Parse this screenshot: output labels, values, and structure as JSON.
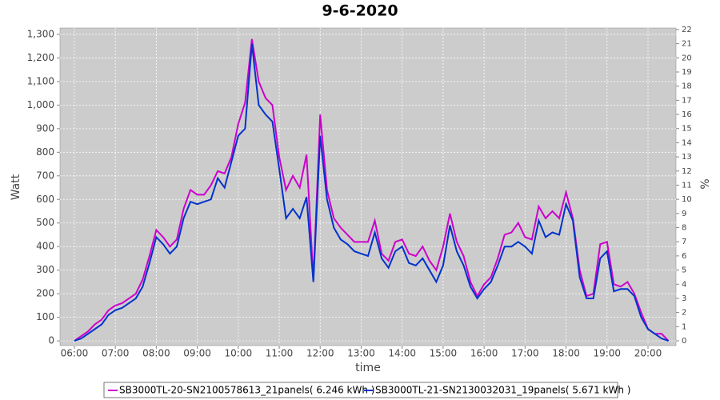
{
  "chart_data": {
    "type": "line",
    "title": "9-6-2020",
    "x_label": "time",
    "y_label": "Watt",
    "y2_label": "%",
    "x": [
      360,
      370,
      380,
      390,
      400,
      410,
      420,
      430,
      440,
      450,
      460,
      470,
      480,
      490,
      500,
      510,
      520,
      530,
      540,
      550,
      560,
      570,
      580,
      590,
      600,
      610,
      620,
      630,
      640,
      650,
      660,
      670,
      680,
      690,
      700,
      710,
      720,
      730,
      740,
      750,
      760,
      770,
      780,
      790,
      800,
      810,
      820,
      830,
      840,
      850,
      860,
      870,
      880,
      890,
      900,
      910,
      920,
      930,
      940,
      950,
      960,
      970,
      980,
      990,
      1000,
      1010,
      1020,
      1030,
      1040,
      1050,
      1060,
      1070,
      1080,
      1090,
      1100,
      1110,
      1120,
      1130,
      1140,
      1150,
      1160,
      1170,
      1180,
      1190,
      1200,
      1210,
      1220,
      1230
    ],
    "series": [
      {
        "name": "SB3000TL-20-SN2100578613_21panels( 6.246 kWh )",
        "color": "#cc00cc",
        "values": [
          0,
          20,
          40,
          70,
          90,
          130,
          150,
          160,
          180,
          200,
          260,
          360,
          470,
          440,
          400,
          430,
          560,
          640,
          620,
          620,
          660,
          720,
          710,
          780,
          920,
          1010,
          1280,
          1100,
          1030,
          1000,
          780,
          640,
          700,
          650,
          790,
          260,
          960,
          640,
          520,
          480,
          450,
          420,
          420,
          420,
          510,
          370,
          340,
          420,
          430,
          370,
          360,
          400,
          340,
          300,
          400,
          540,
          420,
          360,
          250,
          190,
          240,
          270,
          350,
          450,
          460,
          500,
          440,
          430,
          570,
          520,
          550,
          520,
          630,
          520,
          300,
          190,
          200,
          410,
          420,
          240,
          230,
          250,
          200,
          120,
          50,
          30,
          30,
          0
        ]
      },
      {
        "name": "SB3000TL-21-SN2130032031_19panels( 5.671 kWh )",
        "color": "#0033cc",
        "values": [
          0,
          10,
          30,
          50,
          70,
          110,
          130,
          140,
          160,
          180,
          230,
          330,
          440,
          410,
          370,
          400,
          520,
          590,
          580,
          590,
          600,
          690,
          650,
          760,
          870,
          900,
          1260,
          1000,
          960,
          930,
          730,
          520,
          560,
          520,
          610,
          250,
          870,
          600,
          480,
          430,
          410,
          380,
          370,
          360,
          460,
          350,
          310,
          380,
          400,
          330,
          320,
          350,
          300,
          250,
          320,
          490,
          380,
          320,
          230,
          180,
          220,
          250,
          320,
          400,
          400,
          420,
          400,
          370,
          510,
          440,
          460,
          450,
          580,
          510,
          270,
          180,
          180,
          350,
          380,
          210,
          220,
          220,
          190,
          100,
          50,
          30,
          10,
          0
        ]
      }
    ],
    "xlim": [
      339,
      1241
    ],
    "xticks": [
      {
        "value": 360,
        "label": "06:00"
      },
      {
        "value": 420,
        "label": "07:00"
      },
      {
        "value": 480,
        "label": "08:00"
      },
      {
        "value": 540,
        "label": "09:00"
      },
      {
        "value": 600,
        "label": "10:00"
      },
      {
        "value": 660,
        "label": "11:00"
      },
      {
        "value": 720,
        "label": "12:00"
      },
      {
        "value": 780,
        "label": "13:00"
      },
      {
        "value": 840,
        "label": "14:00"
      },
      {
        "value": 900,
        "label": "15:00"
      },
      {
        "value": 960,
        "label": "16:00"
      },
      {
        "value": 1020,
        "label": "17:00"
      },
      {
        "value": 1080,
        "label": "18:00"
      },
      {
        "value": 1140,
        "label": "19:00"
      },
      {
        "value": 1200,
        "label": "20:00"
      }
    ],
    "ylim": [
      -20,
      1327
    ],
    "yticks": [
      0,
      100,
      200,
      300,
      400,
      500,
      600,
      700,
      800,
      900,
      {
        "value": 1000,
        "label": "1,000"
      },
      {
        "value": 1100,
        "label": "1,100"
      },
      {
        "value": 1200,
        "label": "1,200"
      },
      {
        "value": 1300,
        "label": "1,300"
      }
    ],
    "y2lim": [
      -0.34,
      22.11
    ],
    "y2ticks": [
      0,
      1,
      2,
      3,
      4,
      5,
      6,
      7,
      8,
      9,
      10,
      11,
      12,
      13,
      14,
      15,
      16,
      17,
      18,
      19,
      20,
      21,
      22
    ],
    "grid": true,
    "legend": "bottom"
  }
}
